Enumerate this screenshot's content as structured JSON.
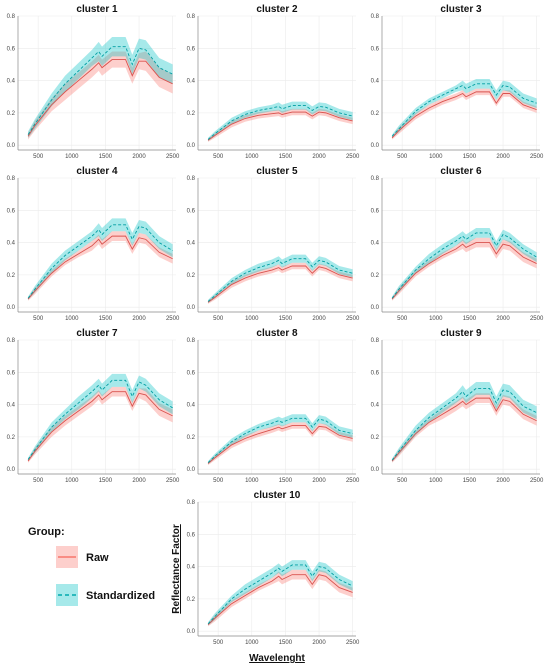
{
  "chart_data": {
    "type": "area",
    "facets": [
      {
        "title": "cluster 1",
        "raw": {
          "mean": [
            0.055,
            0.12,
            0.25,
            0.33,
            0.4,
            0.47,
            0.51,
            0.48,
            0.53,
            0.53,
            0.43,
            0.52,
            0.52,
            0.42,
            0.38
          ],
          "sd": [
            0.02,
            0.03,
            0.04,
            0.05,
            0.05,
            0.05,
            0.05,
            0.05,
            0.05,
            0.05,
            0.05,
            0.05,
            0.06,
            0.06,
            0.06
          ]
        },
        "standardized": {
          "mean": [
            0.065,
            0.13,
            0.28,
            0.38,
            0.46,
            0.54,
            0.58,
            0.55,
            0.61,
            0.61,
            0.5,
            0.6,
            0.59,
            0.48,
            0.44
          ],
          "sd": [
            0.02,
            0.03,
            0.04,
            0.05,
            0.05,
            0.05,
            0.06,
            0.06,
            0.06,
            0.06,
            0.06,
            0.06,
            0.06,
            0.06,
            0.06
          ]
        }
      },
      {
        "title": "cluster 2",
        "raw": {
          "mean": [
            0.03,
            0.06,
            0.13,
            0.165,
            0.185,
            0.195,
            0.2,
            0.19,
            0.205,
            0.205,
            0.18,
            0.205,
            0.2,
            0.17,
            0.15
          ],
          "sd": [
            0.01,
            0.015,
            0.02,
            0.02,
            0.02,
            0.02,
            0.02,
            0.02,
            0.02,
            0.02,
            0.02,
            0.02,
            0.02,
            0.02,
            0.02
          ]
        },
        "standardized": {
          "mean": [
            0.035,
            0.07,
            0.15,
            0.19,
            0.215,
            0.23,
            0.24,
            0.225,
            0.245,
            0.245,
            0.215,
            0.24,
            0.235,
            0.2,
            0.18
          ],
          "sd": [
            0.01,
            0.015,
            0.02,
            0.02,
            0.02,
            0.02,
            0.025,
            0.025,
            0.025,
            0.025,
            0.025,
            0.025,
            0.025,
            0.025,
            0.025
          ]
        }
      },
      {
        "title": "cluster 3",
        "raw": {
          "mean": [
            0.045,
            0.09,
            0.18,
            0.23,
            0.27,
            0.3,
            0.32,
            0.3,
            0.33,
            0.33,
            0.26,
            0.32,
            0.32,
            0.25,
            0.22
          ],
          "sd": [
            0.01,
            0.02,
            0.02,
            0.02,
            0.02,
            0.02,
            0.02,
            0.02,
            0.02,
            0.02,
            0.02,
            0.02,
            0.02,
            0.02,
            0.02
          ]
        },
        "standardized": {
          "mean": [
            0.055,
            0.1,
            0.21,
            0.27,
            0.31,
            0.35,
            0.37,
            0.35,
            0.38,
            0.38,
            0.31,
            0.37,
            0.36,
            0.29,
            0.26
          ],
          "sd": [
            0.01,
            0.02,
            0.02,
            0.02,
            0.02,
            0.02,
            0.03,
            0.03,
            0.03,
            0.03,
            0.03,
            0.03,
            0.03,
            0.03,
            0.03
          ]
        }
      },
      {
        "title": "cluster 4",
        "raw": {
          "mean": [
            0.05,
            0.1,
            0.21,
            0.28,
            0.33,
            0.38,
            0.42,
            0.39,
            0.44,
            0.44,
            0.36,
            0.43,
            0.42,
            0.34,
            0.3
          ],
          "sd": [
            0.01,
            0.02,
            0.02,
            0.02,
            0.02,
            0.03,
            0.03,
            0.03,
            0.03,
            0.03,
            0.03,
            0.03,
            0.03,
            0.03,
            0.03
          ]
        },
        "standardized": {
          "mean": [
            0.055,
            0.11,
            0.24,
            0.32,
            0.38,
            0.44,
            0.48,
            0.45,
            0.51,
            0.51,
            0.42,
            0.5,
            0.49,
            0.4,
            0.35
          ],
          "sd": [
            0.01,
            0.02,
            0.03,
            0.03,
            0.03,
            0.03,
            0.04,
            0.04,
            0.04,
            0.04,
            0.04,
            0.04,
            0.04,
            0.04,
            0.04
          ]
        }
      },
      {
        "title": "cluster 5",
        "raw": {
          "mean": [
            0.03,
            0.06,
            0.14,
            0.18,
            0.21,
            0.23,
            0.245,
            0.23,
            0.255,
            0.255,
            0.21,
            0.25,
            0.24,
            0.2,
            0.18
          ],
          "sd": [
            0.01,
            0.015,
            0.02,
            0.02,
            0.02,
            0.02,
            0.02,
            0.02,
            0.02,
            0.02,
            0.02,
            0.02,
            0.02,
            0.02,
            0.02
          ]
        },
        "standardized": {
          "mean": [
            0.035,
            0.07,
            0.16,
            0.21,
            0.245,
            0.27,
            0.29,
            0.27,
            0.3,
            0.3,
            0.25,
            0.29,
            0.28,
            0.23,
            0.21
          ],
          "sd": [
            0.01,
            0.015,
            0.02,
            0.02,
            0.025,
            0.025,
            0.025,
            0.025,
            0.025,
            0.025,
            0.025,
            0.025,
            0.025,
            0.025,
            0.025
          ]
        }
      },
      {
        "title": "cluster 6",
        "raw": {
          "mean": [
            0.05,
            0.1,
            0.21,
            0.27,
            0.32,
            0.36,
            0.39,
            0.37,
            0.4,
            0.4,
            0.33,
            0.39,
            0.38,
            0.31,
            0.27
          ],
          "sd": [
            0.01,
            0.02,
            0.02,
            0.02,
            0.02,
            0.02,
            0.03,
            0.03,
            0.03,
            0.03,
            0.03,
            0.03,
            0.03,
            0.03,
            0.03
          ]
        },
        "standardized": {
          "mean": [
            0.055,
            0.11,
            0.23,
            0.3,
            0.36,
            0.41,
            0.44,
            0.42,
            0.46,
            0.46,
            0.38,
            0.45,
            0.43,
            0.36,
            0.31
          ],
          "sd": [
            0.01,
            0.02,
            0.02,
            0.03,
            0.03,
            0.03,
            0.03,
            0.03,
            0.03,
            0.03,
            0.03,
            0.03,
            0.03,
            0.03,
            0.03
          ]
        }
      },
      {
        "title": "cluster 7",
        "raw": {
          "mean": [
            0.05,
            0.11,
            0.23,
            0.3,
            0.36,
            0.42,
            0.46,
            0.43,
            0.48,
            0.48,
            0.39,
            0.47,
            0.46,
            0.37,
            0.33
          ],
          "sd": [
            0.01,
            0.02,
            0.03,
            0.03,
            0.03,
            0.03,
            0.03,
            0.03,
            0.03,
            0.03,
            0.03,
            0.03,
            0.04,
            0.04,
            0.04
          ]
        },
        "standardized": {
          "mean": [
            0.06,
            0.12,
            0.26,
            0.34,
            0.41,
            0.48,
            0.52,
            0.49,
            0.55,
            0.55,
            0.45,
            0.54,
            0.52,
            0.43,
            0.38
          ],
          "sd": [
            0.01,
            0.02,
            0.03,
            0.03,
            0.04,
            0.04,
            0.04,
            0.04,
            0.04,
            0.04,
            0.04,
            0.04,
            0.04,
            0.04,
            0.04
          ]
        }
      },
      {
        "title": "cluster 8",
        "raw": {
          "mean": [
            0.035,
            0.07,
            0.15,
            0.19,
            0.22,
            0.245,
            0.26,
            0.25,
            0.27,
            0.27,
            0.22,
            0.265,
            0.26,
            0.21,
            0.19
          ],
          "sd": [
            0.01,
            0.015,
            0.02,
            0.02,
            0.02,
            0.02,
            0.02,
            0.02,
            0.02,
            0.02,
            0.02,
            0.02,
            0.02,
            0.02,
            0.02
          ]
        },
        "standardized": {
          "mean": [
            0.04,
            0.08,
            0.17,
            0.22,
            0.26,
            0.285,
            0.3,
            0.29,
            0.315,
            0.315,
            0.26,
            0.31,
            0.3,
            0.24,
            0.22
          ],
          "sd": [
            0.01,
            0.015,
            0.02,
            0.02,
            0.02,
            0.025,
            0.025,
            0.025,
            0.025,
            0.025,
            0.025,
            0.025,
            0.025,
            0.025,
            0.025
          ]
        }
      },
      {
        "title": "cluster 9",
        "raw": {
          "mean": [
            0.05,
            0.1,
            0.22,
            0.29,
            0.34,
            0.39,
            0.42,
            0.4,
            0.44,
            0.44,
            0.36,
            0.43,
            0.42,
            0.34,
            0.3
          ],
          "sd": [
            0.01,
            0.02,
            0.02,
            0.02,
            0.03,
            0.03,
            0.03,
            0.03,
            0.03,
            0.03,
            0.03,
            0.03,
            0.03,
            0.03,
            0.03
          ]
        },
        "standardized": {
          "mean": [
            0.055,
            0.11,
            0.24,
            0.32,
            0.38,
            0.44,
            0.48,
            0.45,
            0.5,
            0.5,
            0.41,
            0.49,
            0.48,
            0.39,
            0.35
          ],
          "sd": [
            0.01,
            0.02,
            0.03,
            0.03,
            0.03,
            0.03,
            0.04,
            0.04,
            0.04,
            0.04,
            0.04,
            0.04,
            0.04,
            0.04,
            0.04
          ]
        }
      },
      {
        "title": "cluster 10",
        "raw": {
          "mean": [
            0.04,
            0.08,
            0.17,
            0.22,
            0.27,
            0.31,
            0.34,
            0.32,
            0.35,
            0.35,
            0.29,
            0.35,
            0.34,
            0.27,
            0.24
          ],
          "sd": [
            0.01,
            0.02,
            0.02,
            0.02,
            0.02,
            0.02,
            0.03,
            0.03,
            0.03,
            0.03,
            0.03,
            0.03,
            0.03,
            0.03,
            0.03
          ]
        },
        "standardized": {
          "mean": [
            0.045,
            0.09,
            0.2,
            0.26,
            0.31,
            0.36,
            0.39,
            0.37,
            0.41,
            0.41,
            0.34,
            0.4,
            0.39,
            0.32,
            0.28
          ],
          "sd": [
            0.01,
            0.02,
            0.02,
            0.03,
            0.03,
            0.03,
            0.03,
            0.03,
            0.03,
            0.03,
            0.03,
            0.03,
            0.03,
            0.03,
            0.03
          ]
        }
      }
    ],
    "x": [
      350,
      450,
      700,
      900,
      1100,
      1300,
      1400,
      1450,
      1600,
      1800,
      1900,
      2000,
      2100,
      2300,
      2500
    ],
    "xlim": [
      200,
      2550
    ],
    "ylim": [
      -0.03,
      0.8
    ],
    "xticks": [
      500,
      1000,
      1500,
      2000,
      2500
    ],
    "yticks": [
      0.0,
      0.2,
      0.4,
      0.6,
      0.8
    ],
    "xlabel": "Wavelenght",
    "ylabel": "Reflectance Factor",
    "legend": {
      "title": "Group:",
      "entries": [
        "Raw",
        "Standardized"
      ],
      "placement": "bottom-left"
    },
    "colors": {
      "raw": "#F8766D",
      "standardized": "#00BFC4"
    },
    "grid": true
  }
}
